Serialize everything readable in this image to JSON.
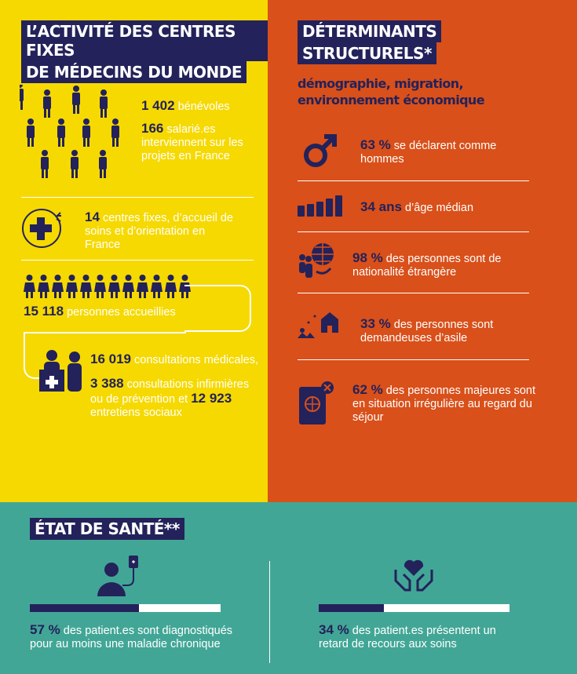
{
  "colors": {
    "yellow": "#f6d900",
    "orange": "#d9501a",
    "teal": "#42a696",
    "navy": "#23225a"
  },
  "left": {
    "title_line1": "L’ACTIVITÉ DES CENTRES FIXES",
    "title_line2": "DE MÉDECINS DU MONDE",
    "volunteers": {
      "num": "1 402",
      "text": "bénévoles"
    },
    "staff": {
      "num": "166",
      "text": "salarié.es",
      "rest": "interviennent sur les projets en France"
    },
    "centres": {
      "num": "14",
      "text": "centres fixes, d’accueil de soins et d’orientation en France"
    },
    "people": {
      "num": "15 118",
      "text": "personnes accueillies"
    },
    "consult": {
      "num": "16 019",
      "text": "consultations médicales,"
    },
    "nurse": {
      "num": "3 388",
      "text": "consultations infirmières ou de prévention",
      "et": "et",
      "num2": "12 923",
      "text2": "entretiens sociaux"
    }
  },
  "right": {
    "title_line1": "DÉTERMINANTS",
    "title_line2": "STRUCTURELS*",
    "subtitle": "démographie, migration, environnement économique",
    "items": [
      {
        "icon": "male-icon",
        "num": "63 %",
        "text": "se déclarent comme hommes"
      },
      {
        "icon": "age-bars-icon",
        "num": "34 ans",
        "text": "d’âge médian"
      },
      {
        "icon": "globe-people-icon",
        "num": "98 %",
        "text": "des personnes sont de nationalité étrangère"
      },
      {
        "icon": "asylum-icon",
        "num": "33 %",
        "text": "des personnes sont demandeuses d’asile"
      },
      {
        "icon": "passport-icon",
        "num": "62 %",
        "text": "des personnes majeures sont en situation irrégulière au regard du séjour"
      }
    ]
  },
  "bottom": {
    "title": "ÉTAT DE SANTÉ**",
    "stats": [
      {
        "icon": "patient-iv-icon",
        "num": "57 %",
        "text": "des patient.es  sont diagnostiqués pour au moins une maladie chronique",
        "progress": 0.57
      },
      {
        "icon": "heart-hands-icon",
        "num": "34 %",
        "text": "des patient.es  présentent un retard de recours aux soins",
        "progress": 0.34
      }
    ]
  }
}
